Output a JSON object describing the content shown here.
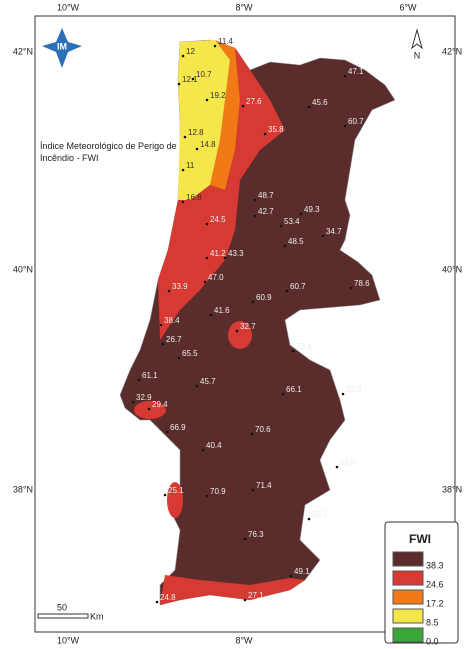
{
  "title": "Índice Meteorológico de Perigo de Incêndio - FWI",
  "logo": "IM",
  "north": "N",
  "lon_labels": [
    "10°W",
    "8°W",
    "6°W"
  ],
  "lat_labels": [
    "42°N",
    "40°N",
    "38°N"
  ],
  "scale_bar": {
    "value": "50",
    "unit": "Km"
  },
  "legend": {
    "title": "FWI",
    "classes": [
      {
        "label": "38.3",
        "color": "#5a2c2c"
      },
      {
        "label": "24.6",
        "color": "#d63a33"
      },
      {
        "label": "17.2",
        "color": "#f27a16"
      },
      {
        "label": "8.5",
        "color": "#f5e64a"
      },
      {
        "label": "0.0",
        "color": "#3aa63a"
      }
    ]
  },
  "stations": [
    "47.1",
    "45.6",
    "60.7",
    "35.8",
    "27.6",
    "19.2",
    "10.7",
    "12.1",
    "12",
    "11.4",
    "12.8",
    "14.8",
    "11",
    "16.8",
    "24.5",
    "48.7",
    "42.7",
    "53.4",
    "49.3",
    "34.7",
    "48.5",
    "41.2",
    "43.3",
    "47.0",
    "60.7",
    "78.6",
    "33.9",
    "60.9",
    "41.6",
    "38.4",
    "32.7",
    "26.7",
    "65.5",
    "73.4",
    "61.1",
    "45.7",
    "66.1",
    "53.9",
    "32.9",
    "29.4",
    "66.9",
    "70.6",
    "40.4",
    "56.0",
    "25.1",
    "70.9",
    "71.4",
    "59.2",
    "76.3",
    "49.1",
    "24.8",
    "27.1"
  ]
}
